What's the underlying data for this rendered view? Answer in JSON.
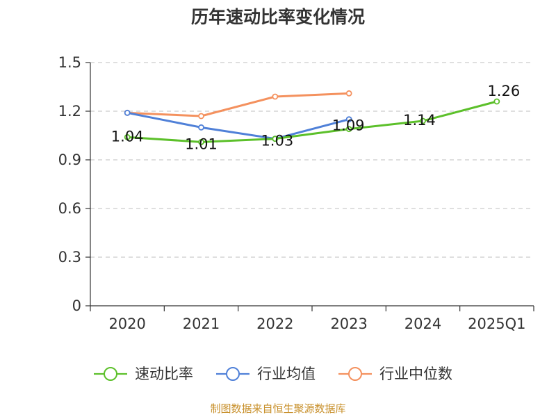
{
  "chart_data": {
    "type": "line",
    "title": "历年速动比率变化情况",
    "categories": [
      "2020",
      "2021",
      "2022",
      "2023",
      "2024",
      "2025Q1"
    ],
    "ylim": [
      0,
      1.5
    ],
    "yticks": [
      "0",
      "0.3",
      "0.6",
      "0.9",
      "1.2",
      "1.5"
    ],
    "grid": true,
    "legend_position": "bottom",
    "series": [
      {
        "name": "速动比率",
        "color": "#5cc02a",
        "values": [
          1.04,
          1.01,
          1.03,
          1.09,
          1.14,
          1.26
        ],
        "labels": [
          "1.04",
          "1.01",
          "1.03",
          "1.09",
          "1.14",
          "1.26"
        ]
      },
      {
        "name": "行业均值",
        "color": "#4f80d8",
        "values": [
          1.19,
          1.1,
          1.03,
          1.15,
          null,
          null
        ]
      },
      {
        "name": "行业中位数",
        "color": "#f4915e",
        "values": [
          1.19,
          1.17,
          1.29,
          1.31,
          null,
          null
        ]
      }
    ]
  },
  "source": "制图数据来自恒生聚源数据库"
}
